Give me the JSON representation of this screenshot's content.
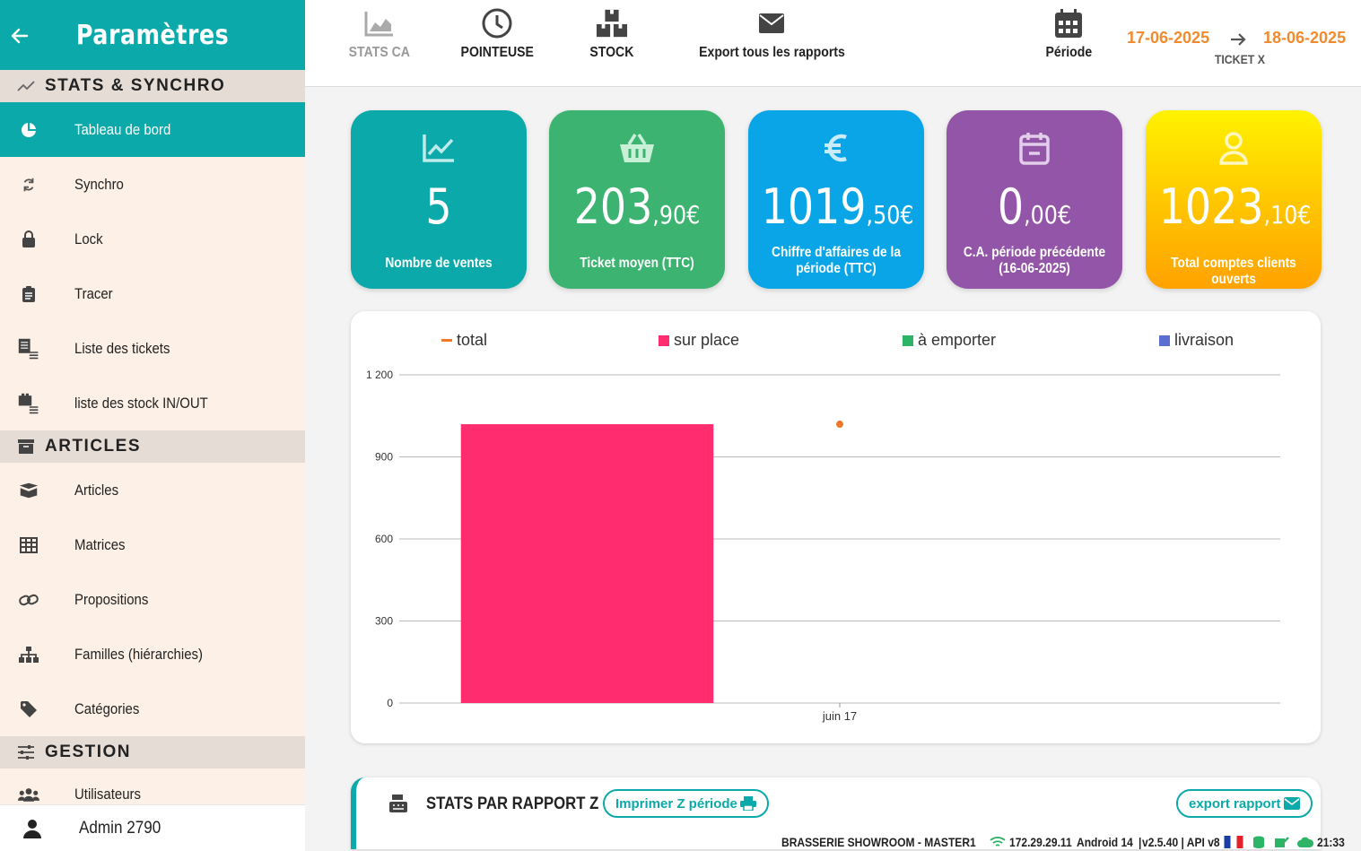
{
  "sidebar": {
    "title": "Paramètres",
    "sections": [
      {
        "label": "STATS & SYNCHRO"
      },
      {
        "label": "ARTICLES"
      },
      {
        "label": "GESTION"
      }
    ],
    "items": [
      {
        "label": "Tableau de bord",
        "icon": "pie-chart-icon"
      },
      {
        "label": "Synchro",
        "icon": "sync-icon"
      },
      {
        "label": "Lock",
        "icon": "lock-icon"
      },
      {
        "label": "Tracer",
        "icon": "clipboard-icon"
      },
      {
        "label": "Liste des tickets",
        "icon": "ticket-list-icon"
      },
      {
        "label": "liste des stock IN/OUT",
        "icon": "stock-list-icon"
      },
      {
        "label": "Articles",
        "icon": "box-icon"
      },
      {
        "label": "Matrices",
        "icon": "grid-icon"
      },
      {
        "label": "Propositions",
        "icon": "link-icon"
      },
      {
        "label": "Familles (hiérarchies)",
        "icon": "hierarchy-icon"
      },
      {
        "label": "Catégories",
        "icon": "tag-icon"
      },
      {
        "label": "Utilisateurs",
        "icon": "users-icon"
      }
    ],
    "footer_user": "Admin 2790"
  },
  "topbar": {
    "stats_ca": "STATS CA",
    "pointeuse": "POINTEUSE",
    "stock": "STOCK",
    "export_all": "Export tous les rapports",
    "periode": "Période",
    "date_from": "17-06-2025",
    "date_to": "18-06-2025",
    "ticket": "TICKET X"
  },
  "cards": [
    {
      "value": "5",
      "decimals": "",
      "label": "Nombre de ventes",
      "color": "#0ba9a9"
    },
    {
      "value": "203",
      "decimals": ",90€",
      "label": "Ticket moyen (TTC)",
      "color": "#3cb371"
    },
    {
      "value": "1019",
      "decimals": ",50€",
      "label": "Chiffre d'affaires de la période (TTC)",
      "color": "#0aa5e6"
    },
    {
      "value": "0",
      "decimals": ",00€",
      "label": "C.A. période précédente (16-06-2025)",
      "color": "#9355a7"
    },
    {
      "value": "1023",
      "decimals": ",10€",
      "label": "Total comptes clients ouverts",
      "color": "#ffc800"
    }
  ],
  "chart_data": {
    "type": "bar",
    "categories": [
      "juin 17"
    ],
    "series": [
      {
        "name": "total",
        "type": "line",
        "values": [
          1019.5
        ],
        "color": "#f07828"
      },
      {
        "name": "sur place",
        "values": [
          1019.5
        ],
        "color": "#ff2d6f"
      },
      {
        "name": "à emporter",
        "values": [
          0
        ],
        "color": "#2db466"
      },
      {
        "name": "livraison",
        "values": [
          0
        ],
        "color": "#5b6fd0"
      }
    ],
    "yticks": [
      "1 200",
      "900",
      "600",
      "300",
      "0"
    ],
    "ylim": [
      0,
      1200
    ],
    "grid": true,
    "legend": "top"
  },
  "zreport": {
    "title": "STATS PAR RAPPORT Z",
    "print_label": "Imprimer Z période",
    "export_label": "export rapport"
  },
  "status": {
    "shop": "BRASSERIE SHOWROOM - MASTER1",
    "ip": "172.29.29.11",
    "os": "Android 14",
    "version": "v2.5.40 | API v8",
    "time": "21:33"
  }
}
